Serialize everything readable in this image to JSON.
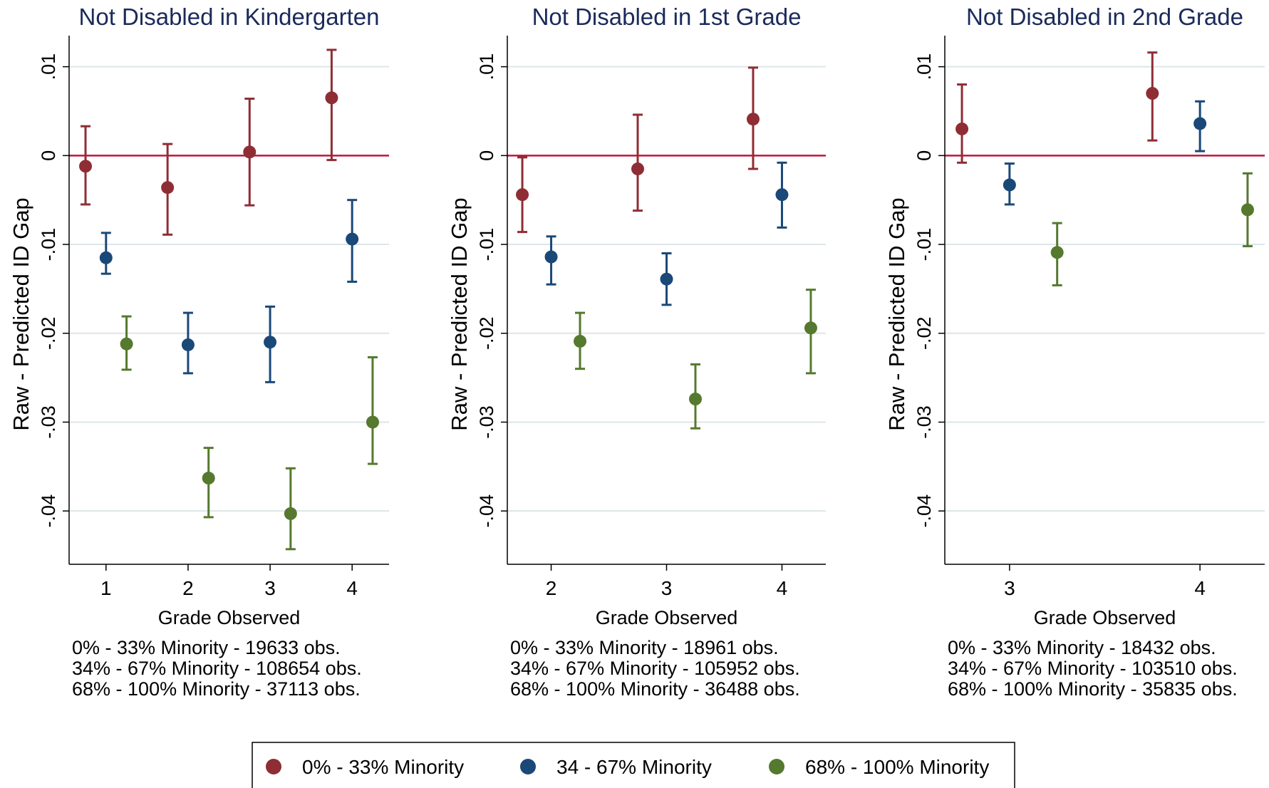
{
  "colors": {
    "series0": "#8f2d35",
    "series1": "#1a4878",
    "series2": "#55792e",
    "zero_line": "#c0143c",
    "grid": "#dde6e8"
  },
  "legend": [
    "0% - 33% Minority",
    "34 - 67% Minority",
    "68% - 100% Minority"
  ],
  "chart_data": [
    {
      "type": "scatter",
      "title": "Not Disabled in Kindergarten",
      "xlabel": "Grade Observed",
      "ylabel": "Raw - Predicted ID Gap",
      "x_ticks": [
        "1",
        "2",
        "3",
        "4"
      ],
      "y_ticks": [
        {
          "value": 0.01,
          "label": ".01"
        },
        {
          "value": 0,
          "label": "0"
        },
        {
          "value": -0.01,
          "label": "-.01"
        },
        {
          "value": -0.02,
          "label": "-.02"
        },
        {
          "value": -0.03,
          "label": "-.03"
        },
        {
          "value": -0.04,
          "label": "-.04"
        }
      ],
      "xlim": [
        0.55,
        4.45
      ],
      "ylim": [
        -0.046,
        0.0135
      ],
      "reference_line_y": 0,
      "series": [
        {
          "points": [
            {
              "x": 1,
              "y": -0.0012,
              "lo": -0.0055,
              "hi": 0.0033
            },
            {
              "x": 2,
              "y": -0.0036,
              "lo": -0.0089,
              "hi": 0.0013
            },
            {
              "x": 3,
              "y": 0.0004,
              "lo": -0.0056,
              "hi": 0.0064
            },
            {
              "x": 4,
              "y": 0.0065,
              "lo": -0.0005,
              "hi": 0.0119
            }
          ]
        },
        {
          "points": [
            {
              "x": 1,
              "y": -0.0115,
              "lo": -0.0133,
              "hi": -0.0087
            },
            {
              "x": 2,
              "y": -0.0213,
              "lo": -0.0245,
              "hi": -0.0177
            },
            {
              "x": 3,
              "y": -0.021,
              "lo": -0.0255,
              "hi": -0.017
            },
            {
              "x": 4,
              "y": -0.0094,
              "lo": -0.0142,
              "hi": -0.005
            }
          ]
        },
        {
          "points": [
            {
              "x": 1,
              "y": -0.0212,
              "lo": -0.0241,
              "hi": -0.0181
            },
            {
              "x": 2,
              "y": -0.0363,
              "lo": -0.0407,
              "hi": -0.0329
            },
            {
              "x": 3,
              "y": -0.0403,
              "lo": -0.0443,
              "hi": -0.0352
            },
            {
              "x": 4,
              "y": -0.03,
              "lo": -0.0347,
              "hi": -0.0227
            }
          ]
        }
      ],
      "notes": [
        "0% - 33% Minority - 19633 obs.",
        "34% - 67% Minority - 108654 obs.",
        "68% - 100% Minority - 37113 obs."
      ]
    },
    {
      "type": "scatter",
      "title": "Not Disabled in 1st Grade",
      "xlabel": "Grade Observed",
      "ylabel": "Raw - Predicted ID Gap",
      "x_ticks": [
        "2",
        "3",
        "4"
      ],
      "y_ticks": [
        {
          "value": 0.01,
          "label": ".01"
        },
        {
          "value": 0,
          "label": "0"
        },
        {
          "value": -0.01,
          "label": "-.01"
        },
        {
          "value": -0.02,
          "label": "-.02"
        },
        {
          "value": -0.03,
          "label": "-.03"
        },
        {
          "value": -0.04,
          "label": "-.04"
        }
      ],
      "xlim": [
        1.62,
        4.38
      ],
      "ylim": [
        -0.046,
        0.0135
      ],
      "reference_line_y": 0,
      "series": [
        {
          "points": [
            {
              "x": 2,
              "y": -0.0044,
              "lo": -0.0086,
              "hi": -0.0002
            },
            {
              "x": 3,
              "y": -0.0015,
              "lo": -0.0062,
              "hi": 0.0046
            },
            {
              "x": 4,
              "y": 0.0041,
              "lo": -0.0015,
              "hi": 0.0099
            }
          ]
        },
        {
          "points": [
            {
              "x": 2,
              "y": -0.0114,
              "lo": -0.0145,
              "hi": -0.0091
            },
            {
              "x": 3,
              "y": -0.0139,
              "lo": -0.0168,
              "hi": -0.011
            },
            {
              "x": 4,
              "y": -0.0044,
              "lo": -0.0081,
              "hi": -0.0008
            }
          ]
        },
        {
          "points": [
            {
              "x": 2,
              "y": -0.0209,
              "lo": -0.024,
              "hi": -0.0177
            },
            {
              "x": 3,
              "y": -0.0274,
              "lo": -0.0307,
              "hi": -0.0235
            },
            {
              "x": 4,
              "y": -0.0194,
              "lo": -0.0245,
              "hi": -0.0151
            }
          ]
        }
      ],
      "notes": [
        "0% - 33% Minority - 18961 obs.",
        "34% - 67% Minority - 105952 obs.",
        "68% - 100% Minority - 36488 obs."
      ]
    },
    {
      "type": "scatter",
      "title": "Not Disabled in 2nd Grade",
      "xlabel": "Grade Observed",
      "ylabel": "Raw - Predicted ID Gap",
      "x_ticks": [
        "3",
        "4"
      ],
      "y_ticks": [
        {
          "value": 0.01,
          "label": ".01"
        },
        {
          "value": 0,
          "label": "0"
        },
        {
          "value": -0.01,
          "label": "-.01"
        },
        {
          "value": -0.02,
          "label": "-.02"
        },
        {
          "value": -0.03,
          "label": "-.03"
        },
        {
          "value": -0.04,
          "label": "-.04"
        }
      ],
      "xlim": [
        2.66,
        4.34
      ],
      "ylim": [
        -0.046,
        0.0135
      ],
      "reference_line_y": 0,
      "series": [
        {
          "points": [
            {
              "x": 3,
              "y": 0.003,
              "lo": -0.0008,
              "hi": 0.008
            },
            {
              "x": 4,
              "y": 0.007,
              "lo": 0.0017,
              "hi": 0.0116
            }
          ]
        },
        {
          "points": [
            {
              "x": 3,
              "y": -0.0033,
              "lo": -0.0055,
              "hi": -0.0009
            },
            {
              "x": 4,
              "y": 0.0036,
              "lo": 0.0005,
              "hi": 0.0061
            }
          ]
        },
        {
          "points": [
            {
              "x": 3,
              "y": -0.0109,
              "lo": -0.0146,
              "hi": -0.0076
            },
            {
              "x": 4,
              "y": -0.0061,
              "lo": -0.0102,
              "hi": -0.002
            }
          ]
        }
      ],
      "notes": [
        "0% - 33% Minority - 18432 obs.",
        "34% - 67% Minority - 103510 obs.",
        "68% - 100% Minority - 35835 obs."
      ]
    }
  ]
}
